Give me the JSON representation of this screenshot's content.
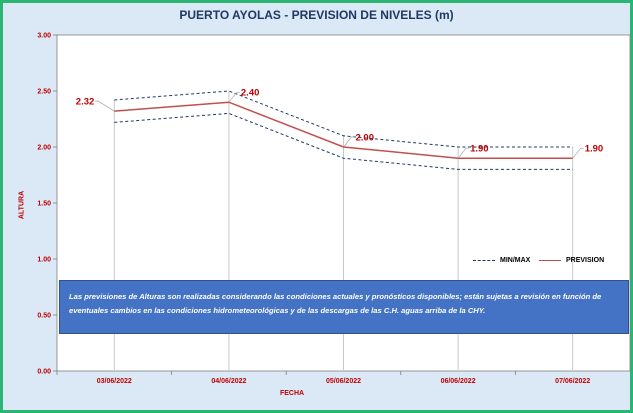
{
  "chart_data": {
    "type": "line",
    "title": "PUERTO AYOLAS - PREVISION DE NIVELES (m)",
    "xlabel": "FECHA",
    "ylabel": "ALTURA",
    "ylim": [
      0,
      3
    ],
    "yticks": [
      "0.00",
      "0.50",
      "1.00",
      "1.50",
      "2.00",
      "2.50",
      "3.00"
    ],
    "categories": [
      "03/06/2022",
      "04/06/2022",
      "05/06/2022",
      "06/06/2022",
      "07/06/2022"
    ],
    "series": [
      {
        "name": "PREVISION",
        "values": [
          2.32,
          2.4,
          2.0,
          1.9,
          1.9
        ],
        "labels": [
          "2.32",
          "2.40",
          "2.00",
          "1.90",
          "1.90"
        ]
      },
      {
        "name": "MAX",
        "values": [
          2.42,
          2.5,
          2.1,
          2.0,
          2.0
        ]
      },
      {
        "name": "MIN",
        "values": [
          2.22,
          2.3,
          1.9,
          1.8,
          1.8
        ]
      }
    ],
    "legend": [
      "MIN/MAX",
      "PREVISION"
    ],
    "legend_position": "lower-right",
    "colors": {
      "prevision": "#c0504d",
      "minmax": "#1f3864",
      "label": "#c00000",
      "axis_label": "#c00000",
      "plot_bg": "#ffffff",
      "frame": "#2bb573"
    }
  },
  "note": "Las previsiones de Alturas son realizadas considerando las condiciones actuales y pronósticos disponibles; están sujetas a revisión en función de eventuales cambios en las condiciones hidrometeorológicas y de las descargas de las C.H. aguas arriba de la CHY."
}
